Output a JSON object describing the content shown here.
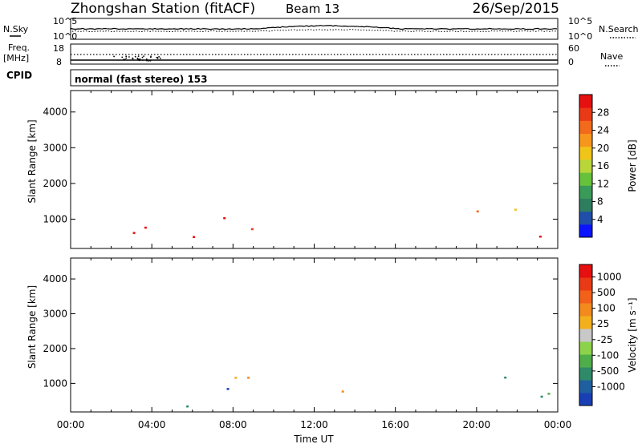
{
  "header": {
    "station": "Zhongshan Station (fitACF)",
    "beam": "Beam 13",
    "date": "26/Sep/2015"
  },
  "status": {
    "nsky_label": "N.Sky",
    "nsearch_label": "N.Search",
    "left_ticks": [
      "10^5",
      "10^0"
    ],
    "right_ticks": [
      "10^5",
      "10^0"
    ],
    "freq_label": "Freq.",
    "freq_unit": "[MHz]",
    "freq_ticks": [
      "18",
      "8"
    ],
    "nave_label": "Nave",
    "nave_ticks": [
      "60",
      "0"
    ],
    "cpid_label": "CPID",
    "cpid_text": "normal (fast stereo) 153"
  },
  "chart_data": [
    {
      "type": "heatmap",
      "name": "power",
      "ylabel": "Slant Range [km]",
      "xlabel": "Time UT",
      "x_ticks": [
        "00:00",
        "04:00",
        "08:00",
        "12:00",
        "16:00",
        "20:00",
        "00:00"
      ],
      "xlim": [
        0,
        24
      ],
      "ylim": [
        180,
        4600
      ],
      "y_ticks": [
        1000,
        2000,
        3000,
        4000
      ],
      "colorbar": {
        "label": "Power [dB]",
        "ticks": [
          "4",
          "8",
          "12",
          "16",
          "20",
          "24",
          "28"
        ],
        "colors": [
          "#0a14ff",
          "#1f4fa8",
          "#2f7d5f",
          "#3a9a58",
          "#66c23a",
          "#b8d63a",
          "#f0c419",
          "#f7961d",
          "#f26a1b",
          "#ea3a15",
          "#e61010"
        ]
      }
    },
    {
      "type": "heatmap",
      "name": "velocity",
      "ylabel": "Slant Range [km]",
      "xlabel": "Time UT",
      "x_ticks": [
        "00:00",
        "04:00",
        "08:00",
        "12:00",
        "16:00",
        "20:00",
        "00:00"
      ],
      "xlim": [
        0,
        24
      ],
      "ylim": [
        180,
        4600
      ],
      "y_ticks": [
        1000,
        2000,
        3000,
        4000
      ],
      "colorbar": {
        "label": "Velocity [m s⁻¹]",
        "ticks": [
          "1000",
          "500",
          "100",
          "25",
          "-25",
          "-100",
          "-500",
          "-1000"
        ],
        "colors": [
          "#1a3fb5",
          "#1f5fa0",
          "#2f8a6a",
          "#4fae4a",
          "#8cd24a",
          "#c8c8c8",
          "#f2b01d",
          "#f28a1d",
          "#f2601a",
          "#ea3a15",
          "#e61010"
        ]
      }
    }
  ],
  "x_axis_title": "Time UT"
}
